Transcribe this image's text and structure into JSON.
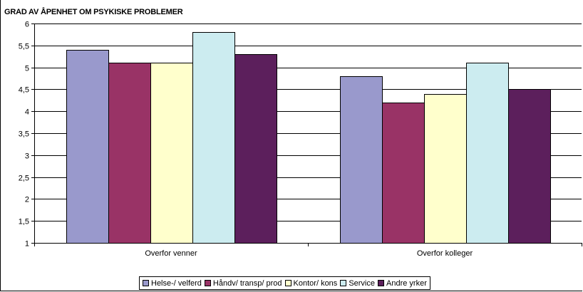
{
  "chart_data": {
    "type": "bar",
    "title": "GRAD AV ÅPENHET OM PSYKISKE PROBLEMER",
    "xlabel": "",
    "ylabel": "",
    "categories": [
      "Overfor venner",
      "Overfor kolleger"
    ],
    "ylim": [
      1,
      6
    ],
    "yticks": [
      "1",
      "1,5",
      "2",
      "2,5",
      "3",
      "3,5",
      "4",
      "4,5",
      "5",
      "5,5",
      "6"
    ],
    "grid": true,
    "legend_position": "bottom",
    "series": [
      {
        "name": "Helse-/ velferd",
        "color": "#9999cc",
        "values": [
          5.4,
          4.8
        ]
      },
      {
        "name": "Håndv/ transp/ prod",
        "color": "#993366",
        "values": [
          5.1,
          4.2
        ]
      },
      {
        "name": "Kontor/ kons",
        "color": "#ffffcc",
        "values": [
          5.1,
          4.4
        ]
      },
      {
        "name": "Service",
        "color": "#ccecf0",
        "values": [
          5.8,
          5.1
        ]
      },
      {
        "name": "Andre yrker",
        "color": "#5c1f5c",
        "values": [
          5.3,
          4.5
        ]
      }
    ]
  }
}
